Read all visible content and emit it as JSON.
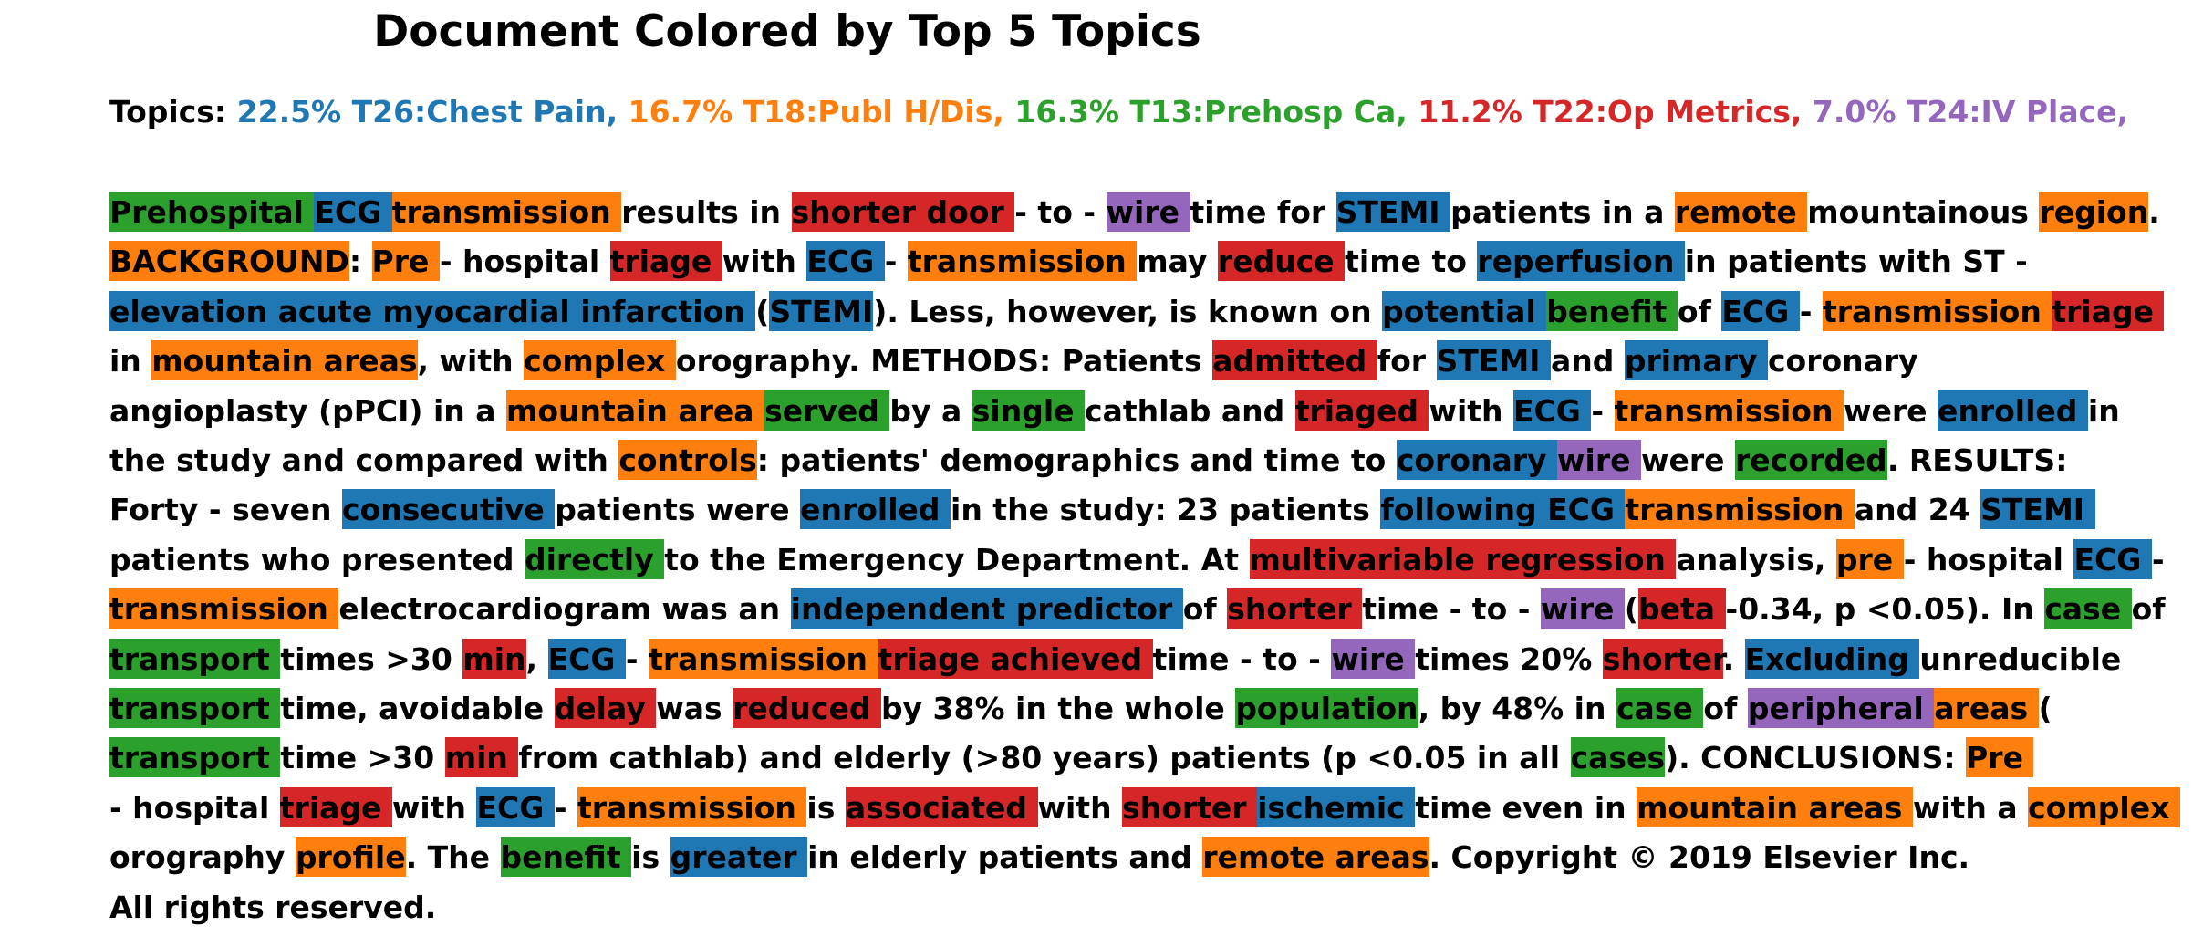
{
  "title": "Document Colored by Top 5 Topics",
  "topics_label": "Topics:",
  "topic_colors": {
    "T26": "#1f77b4",
    "T18": "#ff7f0e",
    "T13": "#2ca02c",
    "T22": "#d62728",
    "T24": "#9467bd"
  },
  "chart_data": {
    "type": "table",
    "title": "Document Colored by Top 5 Topics",
    "topics": [
      {
        "id": "T26",
        "label": "22.5% T26:Chest Pain,",
        "percent": 22.5,
        "name": "Chest Pain",
        "color": "#1f77b4"
      },
      {
        "id": "T18",
        "label": "16.7% T18:Publ H/Dis,",
        "percent": 16.7,
        "name": "Publ H/Dis",
        "color": "#ff7f0e"
      },
      {
        "id": "T13",
        "label": "16.3% T13:Prehosp Ca,",
        "percent": 16.3,
        "name": "Prehosp Ca",
        "color": "#2ca02c"
      },
      {
        "id": "T22",
        "label": "11.2% T22:Op Metrics,",
        "percent": 11.2,
        "name": "Op Metrics",
        "color": "#d62728"
      },
      {
        "id": "T24",
        "label": "7.0% T24:IV Place,",
        "percent": 7.0,
        "name": "IV Place",
        "color": "#9467bd"
      }
    ],
    "tokens": [
      [
        "Prehospital ",
        "T13"
      ],
      [
        "ECG ",
        "T26"
      ],
      [
        "transmission ",
        "T18"
      ],
      [
        "results in ",
        null
      ],
      [
        "shorter door ",
        "T22"
      ],
      [
        "- to - ",
        null
      ],
      [
        "wire ",
        "T24"
      ],
      [
        "time for ",
        null
      ],
      [
        "STEMI ",
        "T26"
      ],
      [
        "patients in a ",
        null
      ],
      [
        "remote ",
        "T18"
      ],
      [
        "mountainous ",
        null
      ],
      [
        "region",
        "T18"
      ],
      [
        ". ",
        null
      ],
      [
        "BACKGROUND",
        "T18"
      ],
      [
        ": ",
        null
      ],
      [
        "Pre ",
        "T18"
      ],
      [
        "- hospital ",
        null
      ],
      [
        "triage ",
        "T22"
      ],
      [
        "with ",
        null
      ],
      [
        "ECG ",
        "T26"
      ],
      [
        "- ",
        null
      ],
      [
        "transmission ",
        "T18"
      ],
      [
        "may ",
        null
      ],
      [
        "reduce ",
        "T22"
      ],
      [
        "time to ",
        null
      ],
      [
        "reperfusion ",
        "T26"
      ],
      [
        "in patients with ST - ",
        null
      ],
      [
        "elevation acute myocardial infarction ",
        "T26"
      ],
      [
        "(",
        null
      ],
      [
        "STEMI",
        "T26"
      ],
      [
        "). Less, however, is known on ",
        null
      ],
      [
        "potential ",
        "T26"
      ],
      [
        "benefit ",
        "T13"
      ],
      [
        "of ",
        null
      ],
      [
        "ECG ",
        "T26"
      ],
      [
        "- ",
        null
      ],
      [
        "transmission ",
        "T18"
      ],
      [
        "triage ",
        "T22"
      ],
      [
        "in ",
        null
      ],
      [
        "mountain areas",
        "T18"
      ],
      [
        ", with ",
        null
      ],
      [
        "complex ",
        "T18"
      ],
      [
        "orography. METHODS: Patients ",
        null
      ],
      [
        "admitted ",
        "T22"
      ],
      [
        "for ",
        null
      ],
      [
        "STEMI ",
        "T26"
      ],
      [
        "and ",
        null
      ],
      [
        "primary ",
        "T26"
      ],
      [
        "coronary ",
        null
      ],
      [
        "angioplasty (pPCI) in a ",
        null
      ],
      [
        "mountain area ",
        "T18"
      ],
      [
        "served ",
        "T13"
      ],
      [
        "by a ",
        null
      ],
      [
        "single ",
        "T13"
      ],
      [
        "cathlab and ",
        null
      ],
      [
        "triaged ",
        "T22"
      ],
      [
        "with ",
        null
      ],
      [
        "ECG ",
        "T26"
      ],
      [
        "- ",
        null
      ],
      [
        "transmission ",
        "T18"
      ],
      [
        "were ",
        null
      ],
      [
        "enrolled ",
        "T26"
      ],
      [
        "in ",
        null
      ],
      [
        "the study and compared with ",
        null
      ],
      [
        "controls",
        "T18"
      ],
      [
        ": patients' demographics and time to ",
        null
      ],
      [
        "coronary ",
        "T26"
      ],
      [
        "wire ",
        "T24"
      ],
      [
        "were ",
        null
      ],
      [
        "recorded",
        "T13"
      ],
      [
        ". RESULTS: ",
        null
      ],
      [
        "Forty - seven ",
        null
      ],
      [
        "consecutive ",
        "T26"
      ],
      [
        "patients were ",
        null
      ],
      [
        "enrolled ",
        "T26"
      ],
      [
        "in the study: 23 patients ",
        null
      ],
      [
        "following ECG ",
        "T26"
      ],
      [
        "transmission ",
        "T18"
      ],
      [
        "and 24 ",
        null
      ],
      [
        "STEMI ",
        "T26"
      ],
      [
        "patients who presented ",
        null
      ],
      [
        "directly ",
        "T13"
      ],
      [
        "to the Emergency Department. At ",
        null
      ],
      [
        "multivariable regression ",
        "T22"
      ],
      [
        "analysis, ",
        null
      ],
      [
        "pre ",
        "T18"
      ],
      [
        "- hospital ",
        null
      ],
      [
        "ECG ",
        "T26"
      ],
      [
        "- ",
        null
      ],
      [
        "transmission ",
        "T18"
      ],
      [
        "electrocardiogram was an ",
        null
      ],
      [
        "independent predictor ",
        "T26"
      ],
      [
        "of ",
        null
      ],
      [
        "shorter ",
        "T22"
      ],
      [
        "time - to - ",
        null
      ],
      [
        "wire ",
        "T24"
      ],
      [
        "(",
        null
      ],
      [
        "beta ",
        "T22"
      ],
      [
        "-0.34, p <0.05). In ",
        null
      ],
      [
        "case ",
        "T13"
      ],
      [
        "of ",
        null
      ],
      [
        "transport ",
        "T13"
      ],
      [
        "times >30 ",
        null
      ],
      [
        "min",
        "T22"
      ],
      [
        ", ",
        null
      ],
      [
        "ECG ",
        "T26"
      ],
      [
        "- ",
        null
      ],
      [
        "transmission ",
        "T18"
      ],
      [
        "triage achieved ",
        "T22"
      ],
      [
        "time - to - ",
        null
      ],
      [
        "wire ",
        "T24"
      ],
      [
        "times 20% ",
        null
      ],
      [
        "shorter",
        "T22"
      ],
      [
        ". ",
        null
      ],
      [
        "Excluding ",
        "T26"
      ],
      [
        "unreducible ",
        null
      ],
      [
        "transport ",
        "T13"
      ],
      [
        "time, avoidable ",
        null
      ],
      [
        "delay ",
        "T22"
      ],
      [
        "was ",
        null
      ],
      [
        "reduced ",
        "T22"
      ],
      [
        "by 38% in the whole ",
        null
      ],
      [
        "population",
        "T13"
      ],
      [
        ", by 48% in ",
        null
      ],
      [
        "case ",
        "T13"
      ],
      [
        "of ",
        null
      ],
      [
        "peripheral ",
        "T24"
      ],
      [
        "areas ",
        "T18"
      ],
      [
        "(",
        null
      ],
      [
        "transport ",
        "T13"
      ],
      [
        "time >30 ",
        null
      ],
      [
        "min ",
        "T22"
      ],
      [
        "from cathlab) and elderly (>80 years) patients (p <0.05 in all ",
        null
      ],
      [
        "cases",
        "T13"
      ],
      [
        "). CONCLUSIONS: ",
        null
      ],
      [
        "Pre ",
        "T18"
      ],
      [
        "- hospital ",
        null
      ],
      [
        "triage ",
        "T22"
      ],
      [
        "with ",
        null
      ],
      [
        "ECG ",
        "T26"
      ],
      [
        "- ",
        null
      ],
      [
        "transmission ",
        "T18"
      ],
      [
        "is ",
        null
      ],
      [
        "associated ",
        "T22"
      ],
      [
        "with ",
        null
      ],
      [
        "shorter ",
        "T22"
      ],
      [
        "ischemic ",
        "T26"
      ],
      [
        "time even in ",
        null
      ],
      [
        "mountain areas ",
        "T18"
      ],
      [
        "with a ",
        null
      ],
      [
        "complex ",
        "T18"
      ],
      [
        "orography ",
        null
      ],
      [
        "profile",
        "T18"
      ],
      [
        ". The ",
        null
      ],
      [
        "benefit ",
        "T13"
      ],
      [
        "is ",
        null
      ],
      [
        "greater ",
        "T26"
      ],
      [
        "in elderly patients and ",
        null
      ],
      [
        "remote areas",
        "T18"
      ],
      [
        ". Copyright © 2019 Elsevier Inc. ",
        null
      ],
      [
        "All rights reserved.",
        null
      ]
    ]
  }
}
